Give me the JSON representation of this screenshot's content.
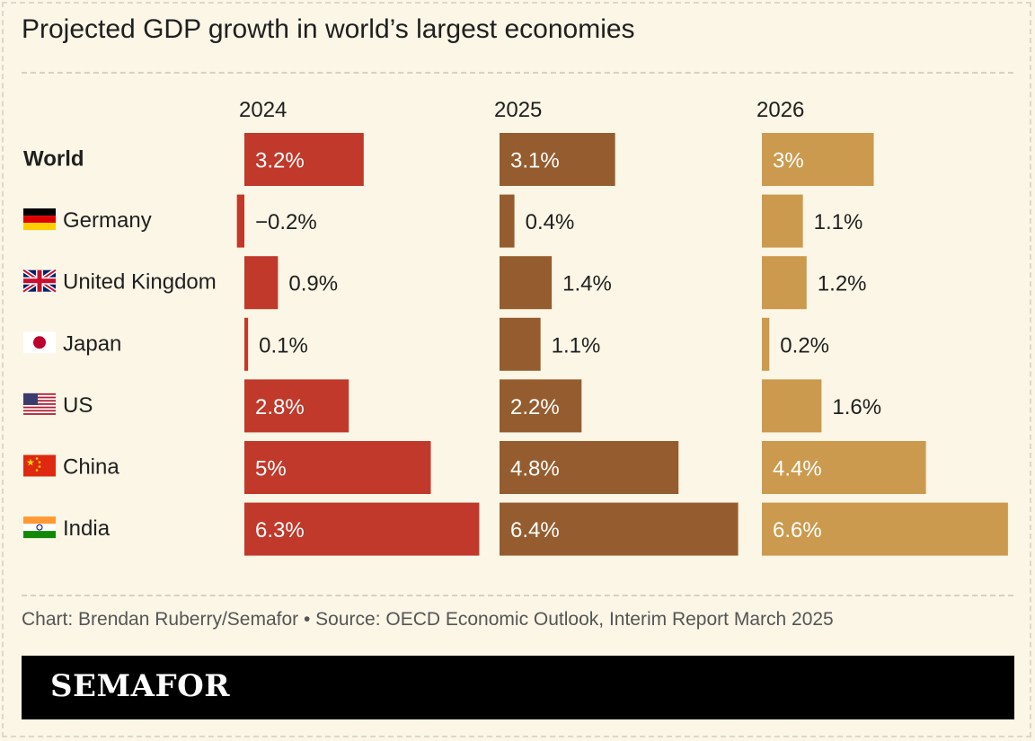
{
  "title": "Projected GDP growth in world’s largest economies",
  "footer": "Chart: Brendan Ruberry/Semafor • Source: OECD Economic Outlook, Interim Report March 2025",
  "brand": "SEMAFOR",
  "chart_data": {
    "type": "bar",
    "orientation": "horizontal",
    "layout": "small-multiples",
    "categories": [
      {
        "label": "World",
        "flag": "none",
        "bold": true
      },
      {
        "label": "Germany",
        "flag": "germany-flag-icon"
      },
      {
        "label": "United Kingdom",
        "flag": "uk-flag-icon"
      },
      {
        "label": "Japan",
        "flag": "japan-flag-icon"
      },
      {
        "label": "US",
        "flag": "us-flag-icon"
      },
      {
        "label": "China",
        "flag": "china-flag-icon"
      },
      {
        "label": "India",
        "flag": "india-flag-icon"
      }
    ],
    "series": [
      {
        "name": "2024",
        "color": "#c0392b",
        "values": [
          3.2,
          -0.2,
          0.9,
          0.1,
          2.8,
          5.0,
          6.3
        ],
        "labels": [
          "3.2%",
          "−0.2%",
          "0.9%",
          "0.1%",
          "2.8%",
          "5%",
          "6.3%"
        ]
      },
      {
        "name": "2025",
        "color": "#955d2f",
        "values": [
          3.1,
          0.4,
          1.4,
          1.1,
          2.2,
          4.8,
          6.4
        ],
        "labels": [
          "3.1%",
          "0.4%",
          "1.4%",
          "1.1%",
          "2.2%",
          "4.8%",
          "6.4%"
        ]
      },
      {
        "name": "2026",
        "color": "#cc9a4e",
        "values": [
          3.0,
          1.1,
          1.2,
          0.2,
          1.6,
          4.4,
          6.6
        ],
        "labels": [
          "3%",
          "1.1%",
          "1.2%",
          "0.2%",
          "1.6%",
          "4.4%",
          "6.6%"
        ]
      }
    ],
    "value_unit": "%",
    "legend": "none",
    "grid": false
  }
}
